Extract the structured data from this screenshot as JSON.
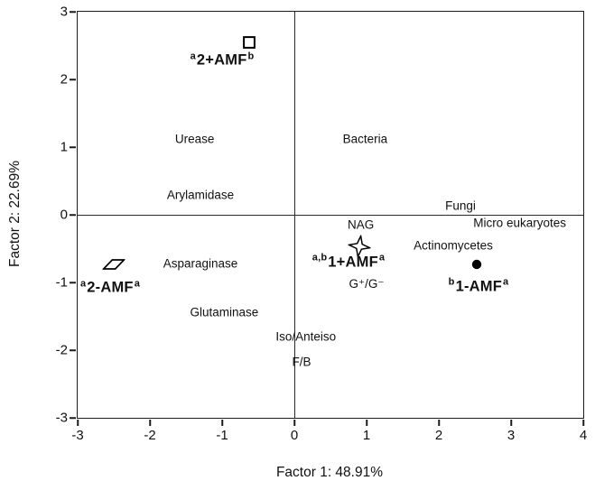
{
  "figure": {
    "background": "#ffffff",
    "frame_color": "#1c1c1c",
    "marker_color": "#000000"
  },
  "chart_data": {
    "type": "scatter",
    "title": "",
    "xlabel": "Factor 1: 48.91%",
    "ylabel": "Factor 2: 22.69%",
    "xlim": [
      -3,
      4
    ],
    "ylim": [
      -3,
      3
    ],
    "xticks": [
      -3,
      -2,
      -1,
      0,
      1,
      2,
      3,
      4
    ],
    "yticks": [
      -3,
      -2,
      -1,
      0,
      1,
      2,
      3
    ],
    "grid": false,
    "zero_lines": true,
    "legend": "none",
    "points": [
      {
        "id": "treatment-2-plus-amf",
        "marker": "open-square",
        "x": -0.62,
        "y": 2.55,
        "label": {
          "pre_sup": "a",
          "text": "2+AMF",
          "post_sup": "b",
          "x": -1.0,
          "y": 2.28
        }
      },
      {
        "id": "treatment-2-minus-amf",
        "marker": "parallelogram",
        "x": -2.5,
        "y": -0.73,
        "label": {
          "pre_sup": "a",
          "text": "2-AMF",
          "post_sup": "a",
          "x": -2.55,
          "y": -1.08
        }
      },
      {
        "id": "treatment-1-plus-amf",
        "marker": "open-star",
        "x": 0.9,
        "y": -0.46,
        "label": {
          "pre_sup": "a,b",
          "text": "1+AMF",
          "post_sup": "a",
          "x": 0.75,
          "y": -0.7
        }
      },
      {
        "id": "treatment-1-minus-amf",
        "marker": "filled-circle",
        "x": 2.52,
        "y": -0.73,
        "label": {
          "pre_sup": "b",
          "text": "1-AMF",
          "post_sup": "a",
          "x": 2.55,
          "y": -1.06
        }
      }
    ],
    "text_labels": [
      {
        "id": "urease",
        "text": "Urease",
        "x": -1.38,
        "y": 1.12
      },
      {
        "id": "arylamidase",
        "text": "Arylamidase",
        "x": -1.3,
        "y": 0.3
      },
      {
        "id": "asparaginase",
        "text": "Asparaginase",
        "x": -1.3,
        "y": -0.72
      },
      {
        "id": "glutaminase",
        "text": "Glutaminase",
        "x": -0.97,
        "y": -1.44
      },
      {
        "id": "bacteria",
        "text": "Bacteria",
        "x": 0.98,
        "y": 1.12
      },
      {
        "id": "nag",
        "text": "NAG",
        "x": 0.92,
        "y": -0.14
      },
      {
        "id": "fungi",
        "text": "Fungi",
        "x": 2.3,
        "y": 0.13
      },
      {
        "id": "micro-eukaryotes",
        "text": "Micro eukaryotes",
        "x": 3.12,
        "y": -0.12
      },
      {
        "id": "actinomycetes",
        "text": "Actinomycetes",
        "x": 2.2,
        "y": -0.45
      },
      {
        "id": "gram-ratio",
        "text": "G⁺/G⁻",
        "x": 1.0,
        "y": -1.02
      },
      {
        "id": "iso-anteiso",
        "text": "Iso/Anteiso",
        "x": 0.16,
        "y": -1.8
      },
      {
        "id": "fb-ratio",
        "text": "F/B",
        "x": 0.1,
        "y": -2.17
      }
    ]
  }
}
